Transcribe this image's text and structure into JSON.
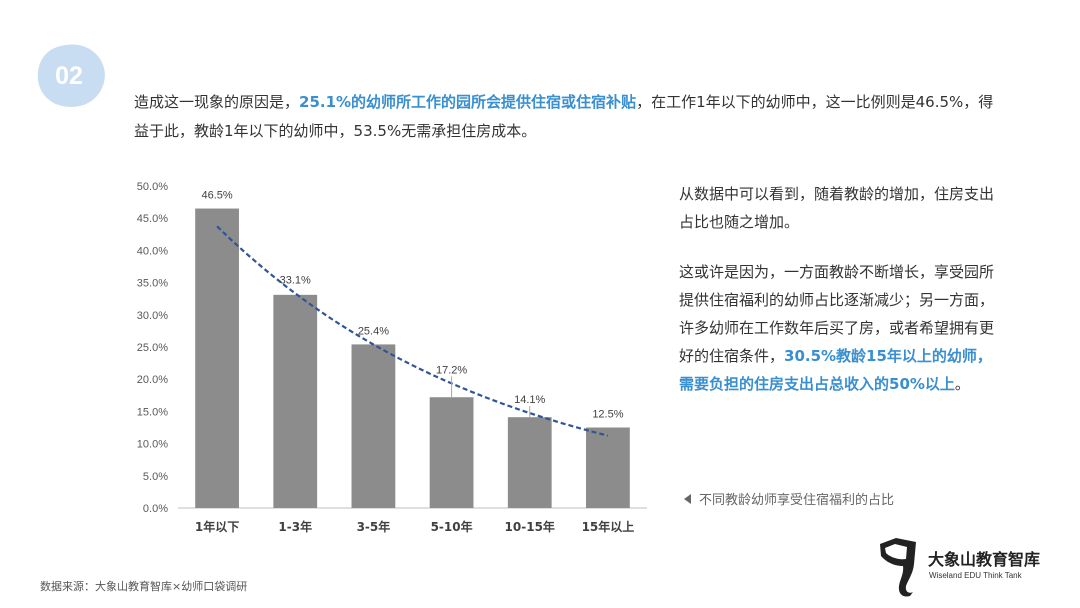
{
  "badge": {
    "number": "02",
    "color": "#c8ddf2"
  },
  "intro": {
    "part1": "造成这一现象的原因是，",
    "highlight": "25.1%的幼师所工作的园所会提供住宿或住宿补贴",
    "part2": "，在工作1年以下的幼师中，这一比例则是46.5%，得益于此，教龄1年以下的幼师中，53.5%无需承担住房成本。"
  },
  "side": {
    "para1": "从数据中可以看到，随着教龄的增加，住房支出占比也随之增加。",
    "para2_part1": "这或许是因为，一方面教龄不断增长，享受园所提供住宿福利的幼师占比逐渐减少；另一方面，许多幼师在工作数年后买了房，或者希望拥有更好的住宿条件，",
    "para2_highlight": "30.5%教龄15年以上的幼师，需要负担的住房支出占总收入的50%以上",
    "para2_end": "。"
  },
  "caption": "不同教龄幼师享受住宿福利的占比",
  "source": "数据来源：大象山教育智库×幼师口袋调研",
  "logo": {
    "cn": "大象山教育智库",
    "en": "Wiseland EDU Think Tank"
  },
  "colors": {
    "highlight": "#3a8fd0",
    "bar": "#8c8c8c",
    "trend": "#2f5597"
  },
  "chart_data": {
    "type": "bar",
    "categories": [
      "1年以下",
      "1-3年",
      "3-5年",
      "5-10年",
      "10-15年",
      "15年以上"
    ],
    "values": [
      46.5,
      33.1,
      25.4,
      17.2,
      14.1,
      12.5
    ],
    "data_labels": [
      "46.5%",
      "33.1%",
      "25.4%",
      "17.2%",
      "14.1%",
      "12.5%"
    ],
    "ylim": [
      0,
      50
    ],
    "yticks": [
      "0.0%",
      "5.0%",
      "10.0%",
      "15.0%",
      "20.0%",
      "25.0%",
      "30.0%",
      "35.0%",
      "40.0%",
      "45.0%",
      "50.0%"
    ],
    "trendline": "exponential",
    "trend_style": "dashed",
    "grid": false,
    "title": "",
    "xlabel": "",
    "ylabel": ""
  }
}
